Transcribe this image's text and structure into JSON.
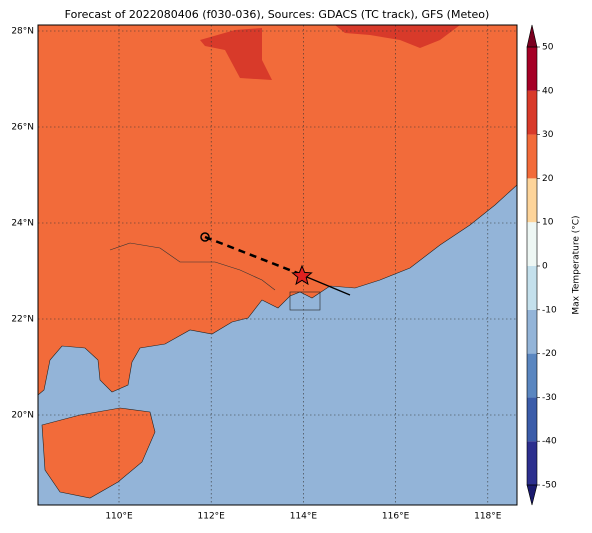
{
  "title": "Forecast of 2022080406 (f030-036), Sources: GDACS (TC track), GFS (Meteo)",
  "map": {
    "lon_labels": [
      "110°E",
      "112°E",
      "114°E",
      "116°E",
      "118°E"
    ],
    "lat_labels": [
      "28°N",
      "26°N",
      "24°N",
      "22°N",
      "20°N"
    ]
  },
  "colorbar": {
    "label": "Max Temperature (°C)",
    "ticks": [
      50,
      40,
      30,
      20,
      10,
      0,
      -10,
      -20,
      -30,
      -40,
      -50
    ],
    "colors": [
      "#2c2f8e",
      "#3b5ca9",
      "#5a86c0",
      "#93b4d8",
      "#c4e0ec",
      "#eef7f4",
      "#fdd49a",
      "#f26b3a",
      "#d83a2a",
      "#a50026"
    ],
    "under_color": "#1a1a6e",
    "over_color": "#7a0020"
  }
}
